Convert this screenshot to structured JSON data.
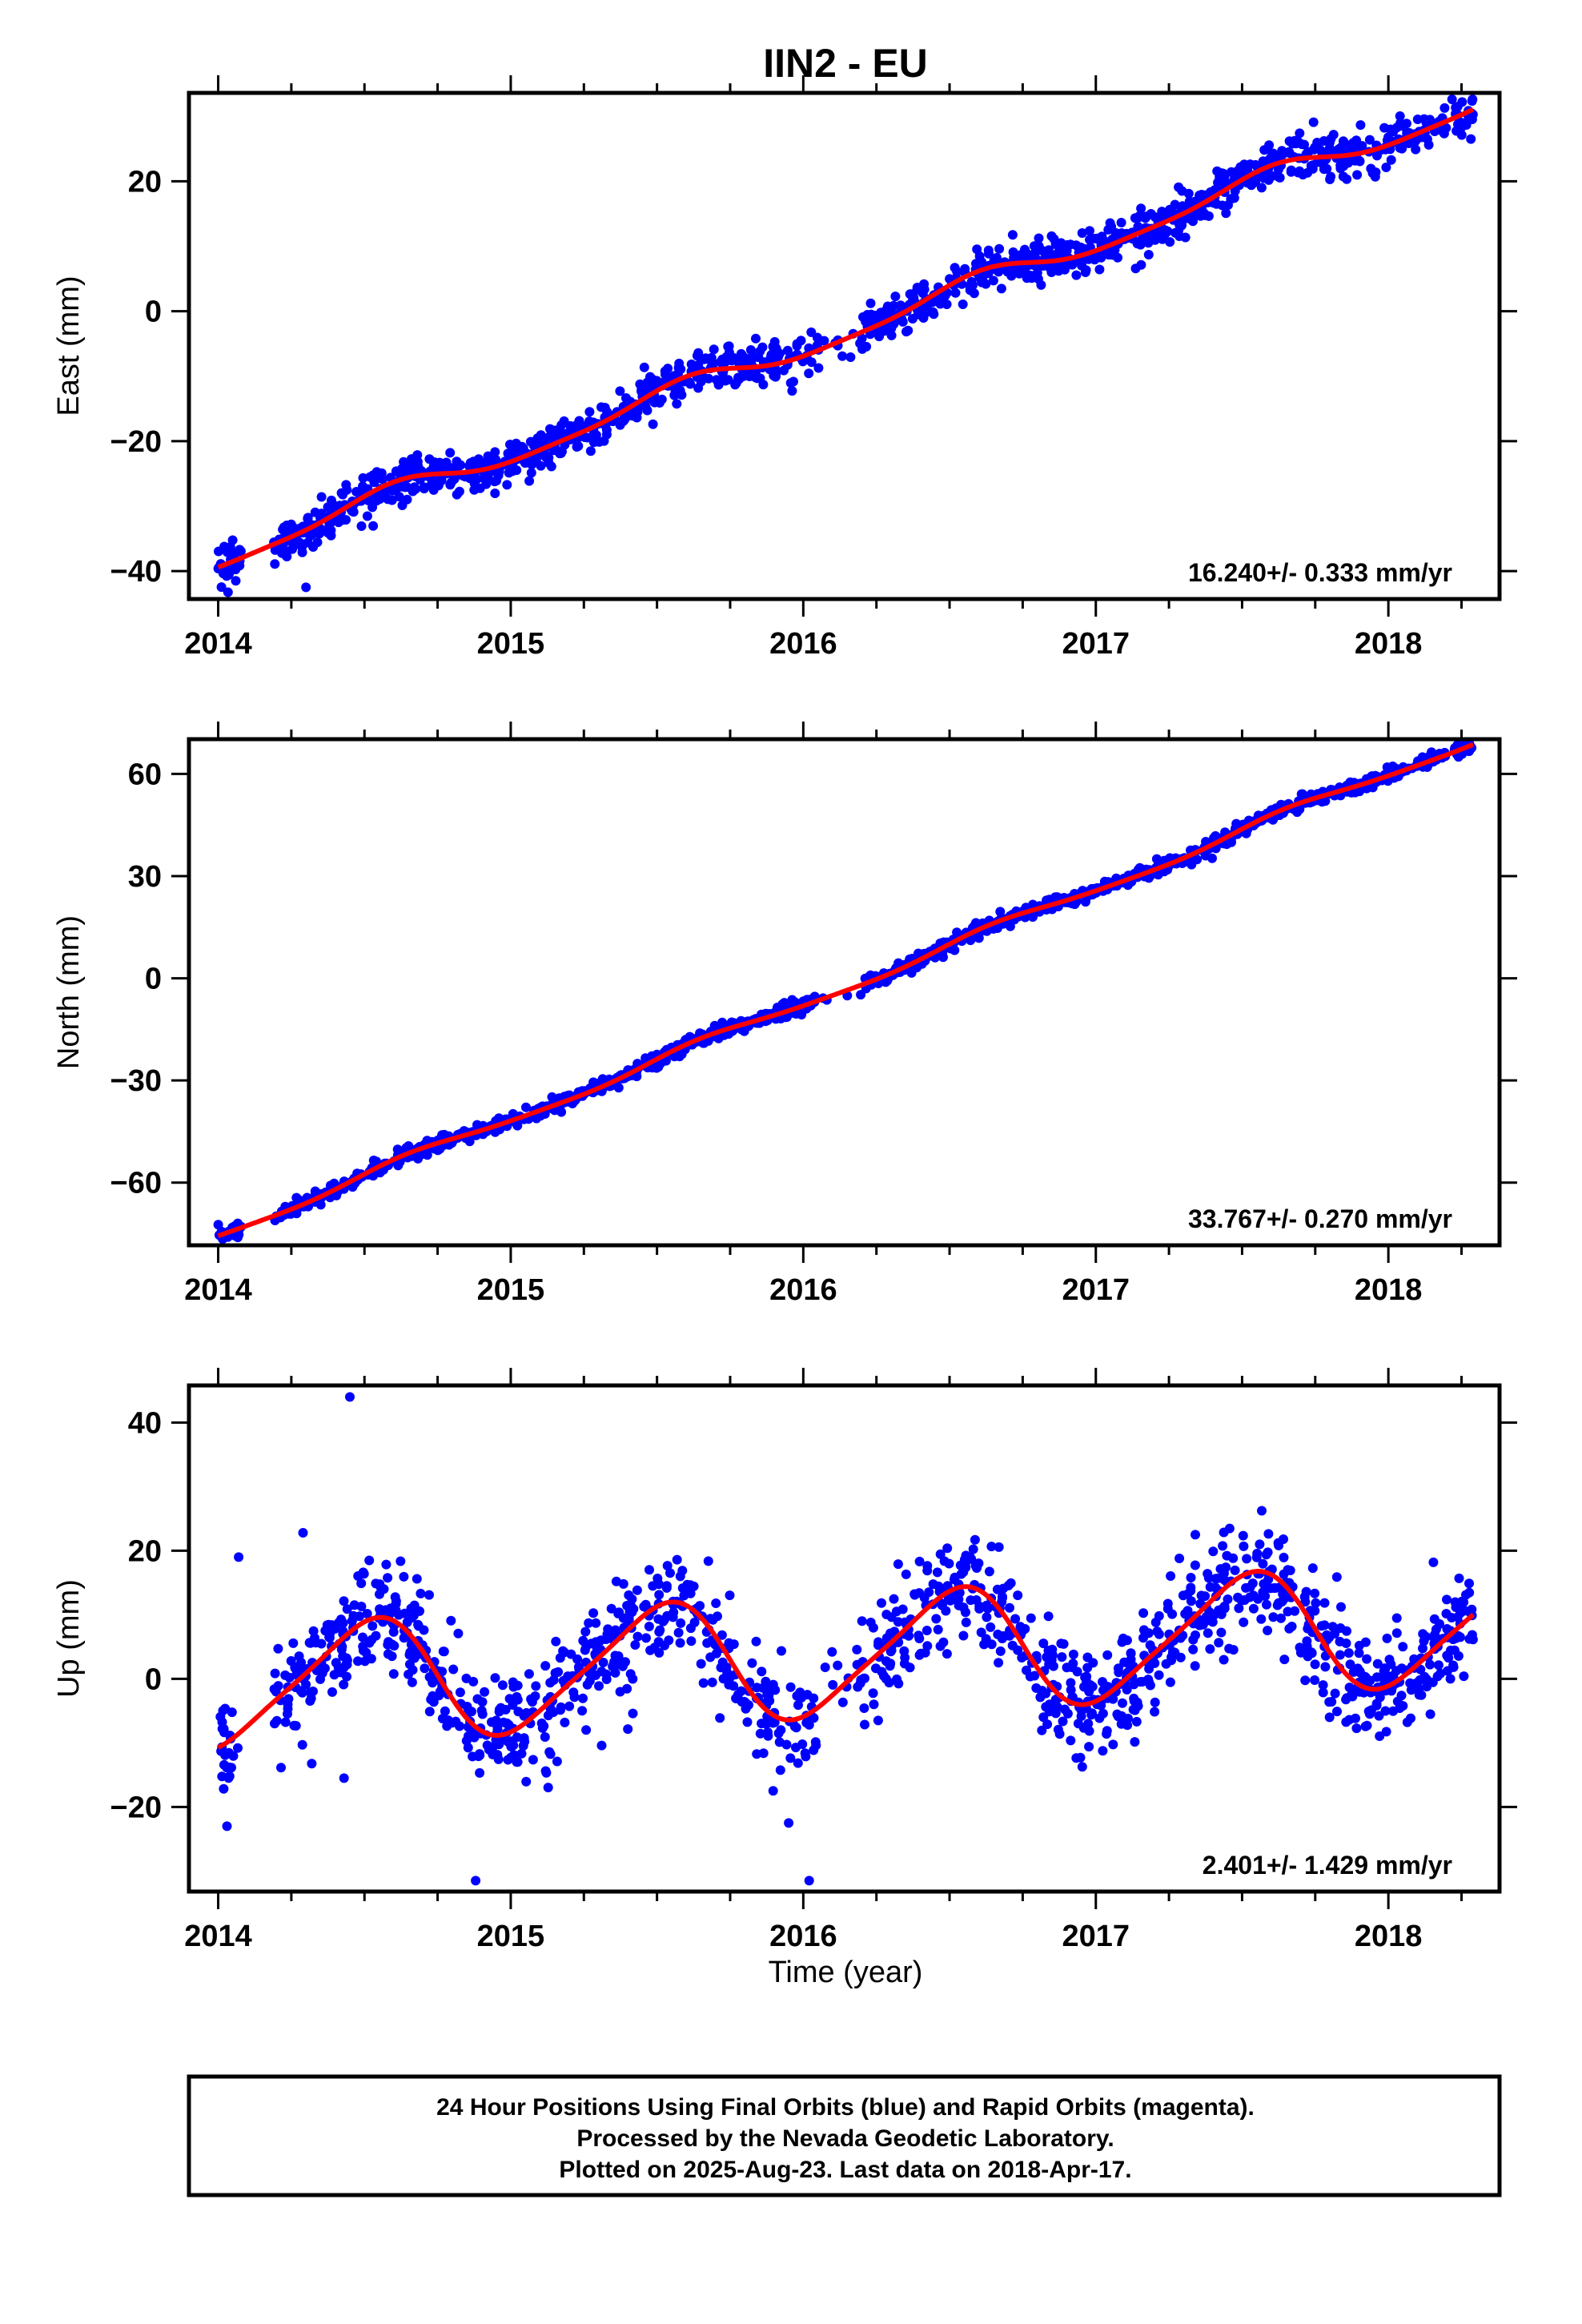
{
  "title": "IIN2 - EU",
  "colors": {
    "points": "#0000ff",
    "model": "#ff0000",
    "frame": "#000000"
  },
  "x_axis": {
    "ticks": [
      2014,
      2015,
      2016,
      2017,
      2018
    ],
    "label": "Time (year)"
  },
  "chart_data": [
    {
      "type": "scatter",
      "panel": "east",
      "ylabel": "East (mm)",
      "xlim": [
        2013.9,
        2018.38
      ],
      "ylim": [
        -44.3,
        33.6
      ],
      "yticks": [
        -40,
        -20,
        0,
        20
      ],
      "rate_label": "16.240+/- 0.333 mm/yr",
      "x_range": [
        2014.0,
        2018.29
      ],
      "trend": {
        "at_2014": -38.0,
        "slope": 16.24,
        "annual_amp": 1.6,
        "annual_phase": 4.2,
        "semi_amp": 0.4
      },
      "noise": 1.6,
      "outliers": [
        [
          2014.06,
          -41.5
        ],
        [
          2014.3,
          -42.5
        ],
        [
          2014.44,
          -27.5
        ]
      ],
      "series": [
        {
          "role": "daily positions (final orbits)"
        },
        {
          "role": "model fit"
        }
      ]
    },
    {
      "type": "scatter",
      "panel": "north",
      "ylabel": "North (mm)",
      "xlim": [
        2013.9,
        2018.38
      ],
      "ylim": [
        -78.4,
        70.2
      ],
      "yticks": [
        -60,
        -30,
        0,
        30,
        60
      ],
      "rate_label": "33.767+/- 0.270 mm/yr",
      "x_range": [
        2014.0,
        2018.29
      ],
      "trend": {
        "at_2014": -75.0,
        "slope": 33.77,
        "annual_amp": 1.4,
        "annual_phase": 3.6,
        "semi_amp": 0.3
      },
      "noise": 1.0,
      "outliers": [],
      "series": [
        {
          "role": "daily positions (final orbits)"
        },
        {
          "role": "model fit"
        }
      ]
    },
    {
      "type": "scatter",
      "panel": "up",
      "ylabel": "Up (mm)",
      "xlim": [
        2013.9,
        2018.38
      ],
      "ylim": [
        -33.2,
        45.8
      ],
      "yticks": [
        -20,
        0,
        20,
        40
      ],
      "rate_label": "2.401+/- 1.429 mm/yr",
      "x_range": [
        2014.0,
        2018.29
      ],
      "trend": {
        "at_2014": -1.5,
        "slope": 2.4,
        "annual_amp": 9.2,
        "annual_phase": -1.6,
        "semi_amp": 1.6
      },
      "noise": 4.3,
      "outliers": [
        [
          2014.45,
          44.0
        ],
        [
          2014.88,
          -31.5
        ],
        [
          2016.02,
          -31.5
        ],
        [
          2014.29,
          22.8
        ],
        [
          2014.07,
          19.0
        ],
        [
          2015.95,
          -22.5
        ],
        [
          2017.34,
          22.5
        ],
        [
          2014.03,
          -23.0
        ],
        [
          2017.56,
          21.0
        ],
        [
          2014.43,
          -15.5
        ]
      ],
      "series": [
        {
          "role": "daily positions (final orbits)"
        },
        {
          "role": "model fit"
        }
      ]
    }
  ],
  "footer": {
    "lines": [
      "24 Hour Positions Using Final Orbits (blue) and Rapid Orbits (magenta).",
      "Processed by the Nevada Geodetic Laboratory.",
      "Plotted on 2025-Aug-23. Last data on 2018-Apr-17."
    ]
  }
}
